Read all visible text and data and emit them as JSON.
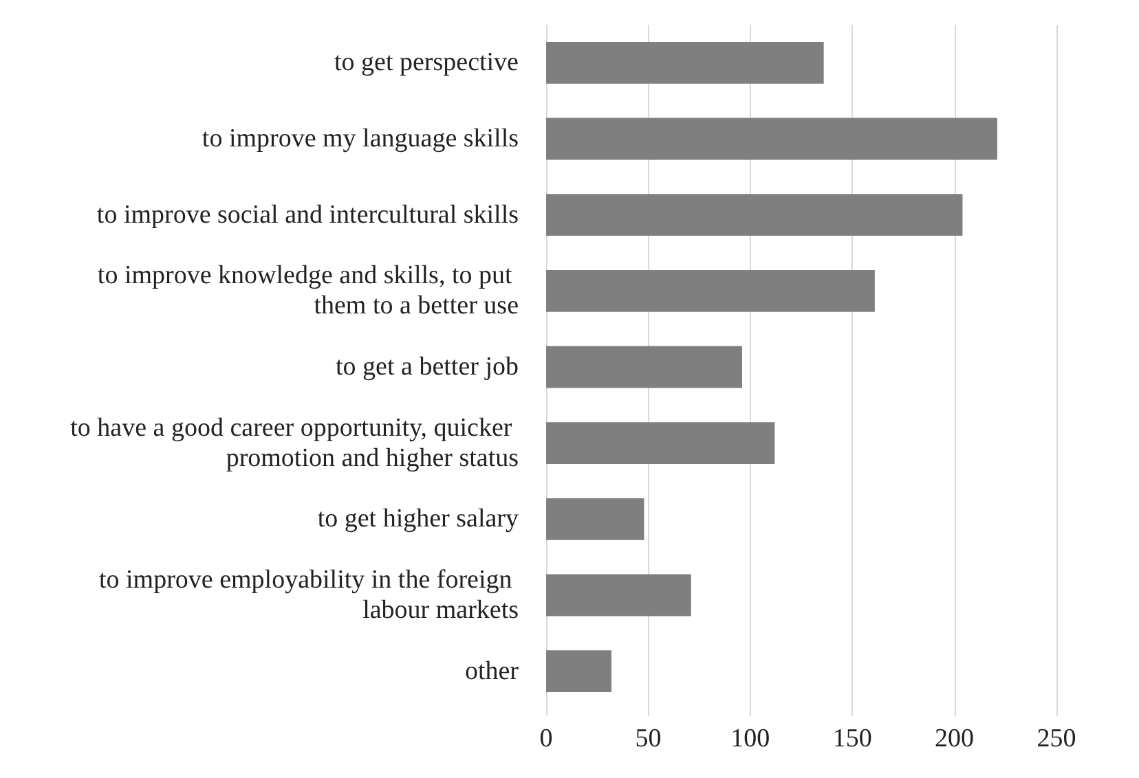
{
  "chart_data": {
    "type": "bar",
    "orientation": "horizontal",
    "categories": [
      "to get perspective",
      "to improve my language skills",
      "to improve social and intercultural skills",
      "to improve knowledge and skills, to put them to a better use",
      "to get a better job",
      "to have a good career opportunity, quicker promotion and higher status",
      "to get higher salary",
      "to improve employability in the foreign labour markets",
      "other"
    ],
    "values": [
      136,
      221,
      204,
      161,
      96,
      112,
      48,
      71,
      32
    ],
    "color": "#7f7f7f",
    "xlim": [
      0,
      250
    ],
    "xticks": [
      0,
      50,
      100,
      150,
      200,
      250
    ],
    "grid": "x"
  }
}
